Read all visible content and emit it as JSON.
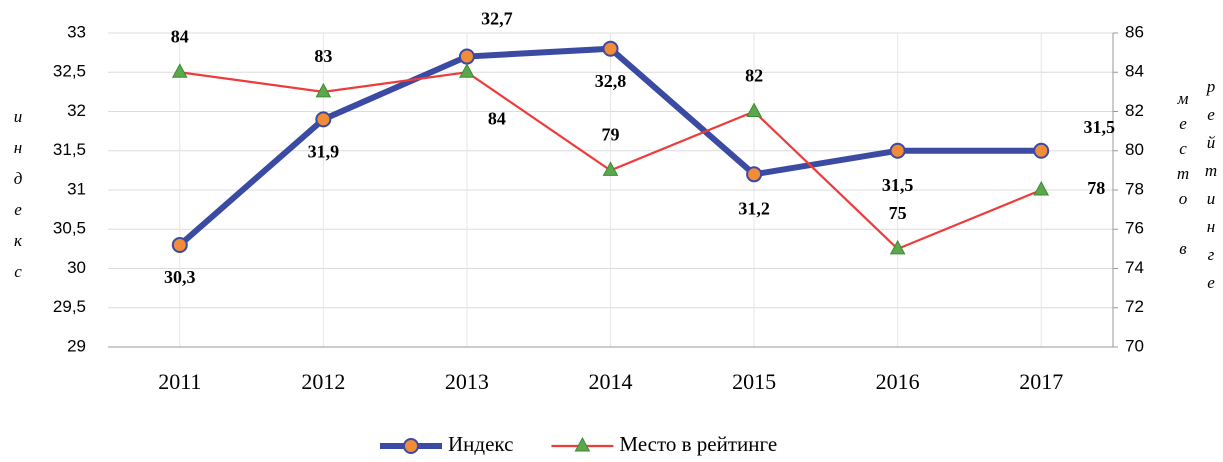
{
  "chart_data": {
    "type": "line",
    "categories": [
      "2011",
      "2012",
      "2013",
      "2014",
      "2015",
      "2016",
      "2017"
    ],
    "y_label": "индекс",
    "y2_label": "место в рейтинге",
    "series": [
      {
        "name": "Индекс",
        "color": "#3b4aa3",
        "marker_color": "#f28c38",
        "values": [
          30.3,
          31.9,
          32.7,
          32.8,
          31.2,
          31.5,
          31.5
        ],
        "value_labels": [
          "30,3",
          "31,9",
          "32,7",
          "32,8",
          "31,2",
          "31,5",
          "31,5"
        ]
      },
      {
        "name": "Место в рейтинге",
        "color": "#ee3b3b",
        "marker_color": "#5aa84b",
        "axis": "y2",
        "values": [
          84,
          83,
          84,
          79,
          82,
          75,
          78
        ]
      }
    ],
    "ylim": [
      29,
      33
    ],
    "yticks": [
      29,
      {
        "value": 29.5,
        "label": "29,5"
      },
      30,
      {
        "value": 30.5,
        "label": "30,5"
      },
      31,
      {
        "value": 31.5,
        "label": "31,5"
      },
      32,
      {
        "value": 32.5,
        "label": "32,5"
      },
      33
    ],
    "y2lim": [
      70,
      86
    ],
    "y2ticks": [
      70,
      72,
      74,
      76,
      78,
      80,
      82,
      84,
      86
    ],
    "grid": true,
    "legend": "bottom"
  }
}
